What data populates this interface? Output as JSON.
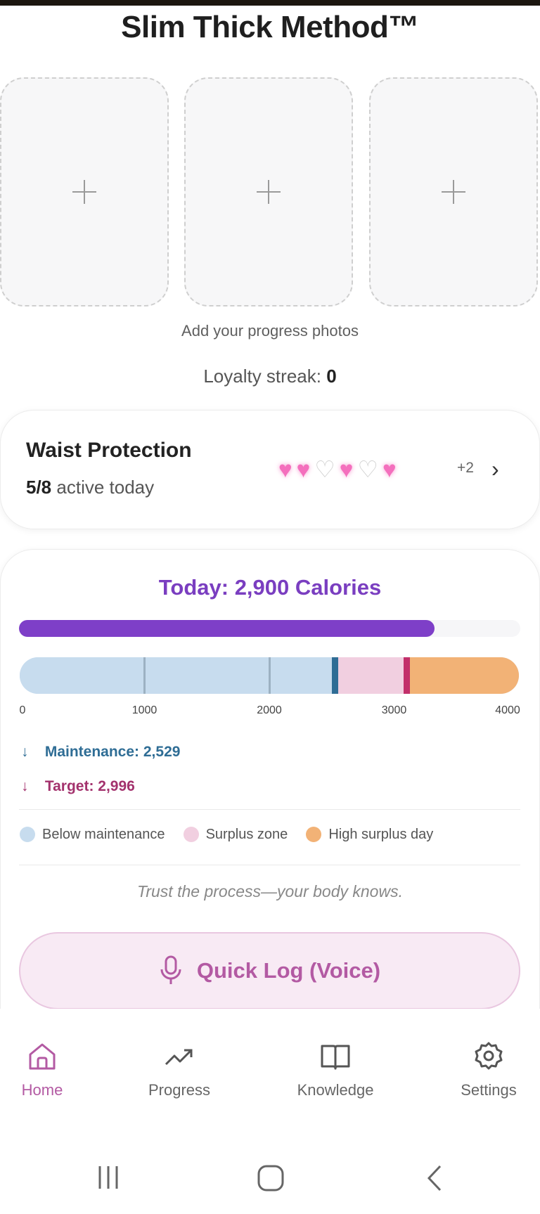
{
  "app": {
    "title": "Slim Thick Method™"
  },
  "photos": {
    "slots": [
      {
        "icon": "plus-icon"
      },
      {
        "icon": "plus-icon"
      },
      {
        "icon": "plus-icon"
      }
    ],
    "caption": "Add your progress photos"
  },
  "loyalty": {
    "label": "Loyalty streak:",
    "value": "0"
  },
  "waist": {
    "title": "Waist Protection",
    "active_count": "5/8",
    "active_suffix": "active today",
    "hearts": [
      "filled",
      "filled",
      "empty",
      "filled",
      "empty",
      "filled"
    ],
    "more": "+2",
    "colors": {
      "filled": "#f46fbd",
      "empty": "#cfcfcf"
    }
  },
  "calories": {
    "title": "Today: 2,900 Calories",
    "today": 2900,
    "scale_max": 4000,
    "ticks": [
      "0",
      "1000",
      "2000",
      "3000",
      "4000"
    ],
    "maintenance_label": "Maintenance: 2,529",
    "target_label": "Target: 2,996",
    "maintenance": 2529,
    "target": 2996,
    "surplus_high": 3100,
    "colors": {
      "progress": "#7e3fc8",
      "below": "#c7dcee",
      "surplus": "#f1cfe0",
      "high": "#f2b276",
      "maintenance": "#2f6d95",
      "target": "#c22f6a"
    },
    "legend": [
      {
        "label": "Below maintenance",
        "color": "#c7dcee"
      },
      {
        "label": "Surplus zone",
        "color": "#f1cfe0"
      },
      {
        "label": "High surplus day",
        "color": "#f2b276"
      }
    ],
    "tagline": "Trust the process—your body knows."
  },
  "voice": {
    "label": "Quick Log (Voice)",
    "icon": "microphone-icon"
  },
  "nav": {
    "items": [
      {
        "label": "Home",
        "icon": "home-icon",
        "active": true
      },
      {
        "label": "Progress",
        "icon": "trend-icon",
        "active": false
      },
      {
        "label": "Knowledge",
        "icon": "book-icon",
        "active": false
      },
      {
        "label": "Settings",
        "icon": "gear-icon",
        "active": false
      }
    ]
  }
}
